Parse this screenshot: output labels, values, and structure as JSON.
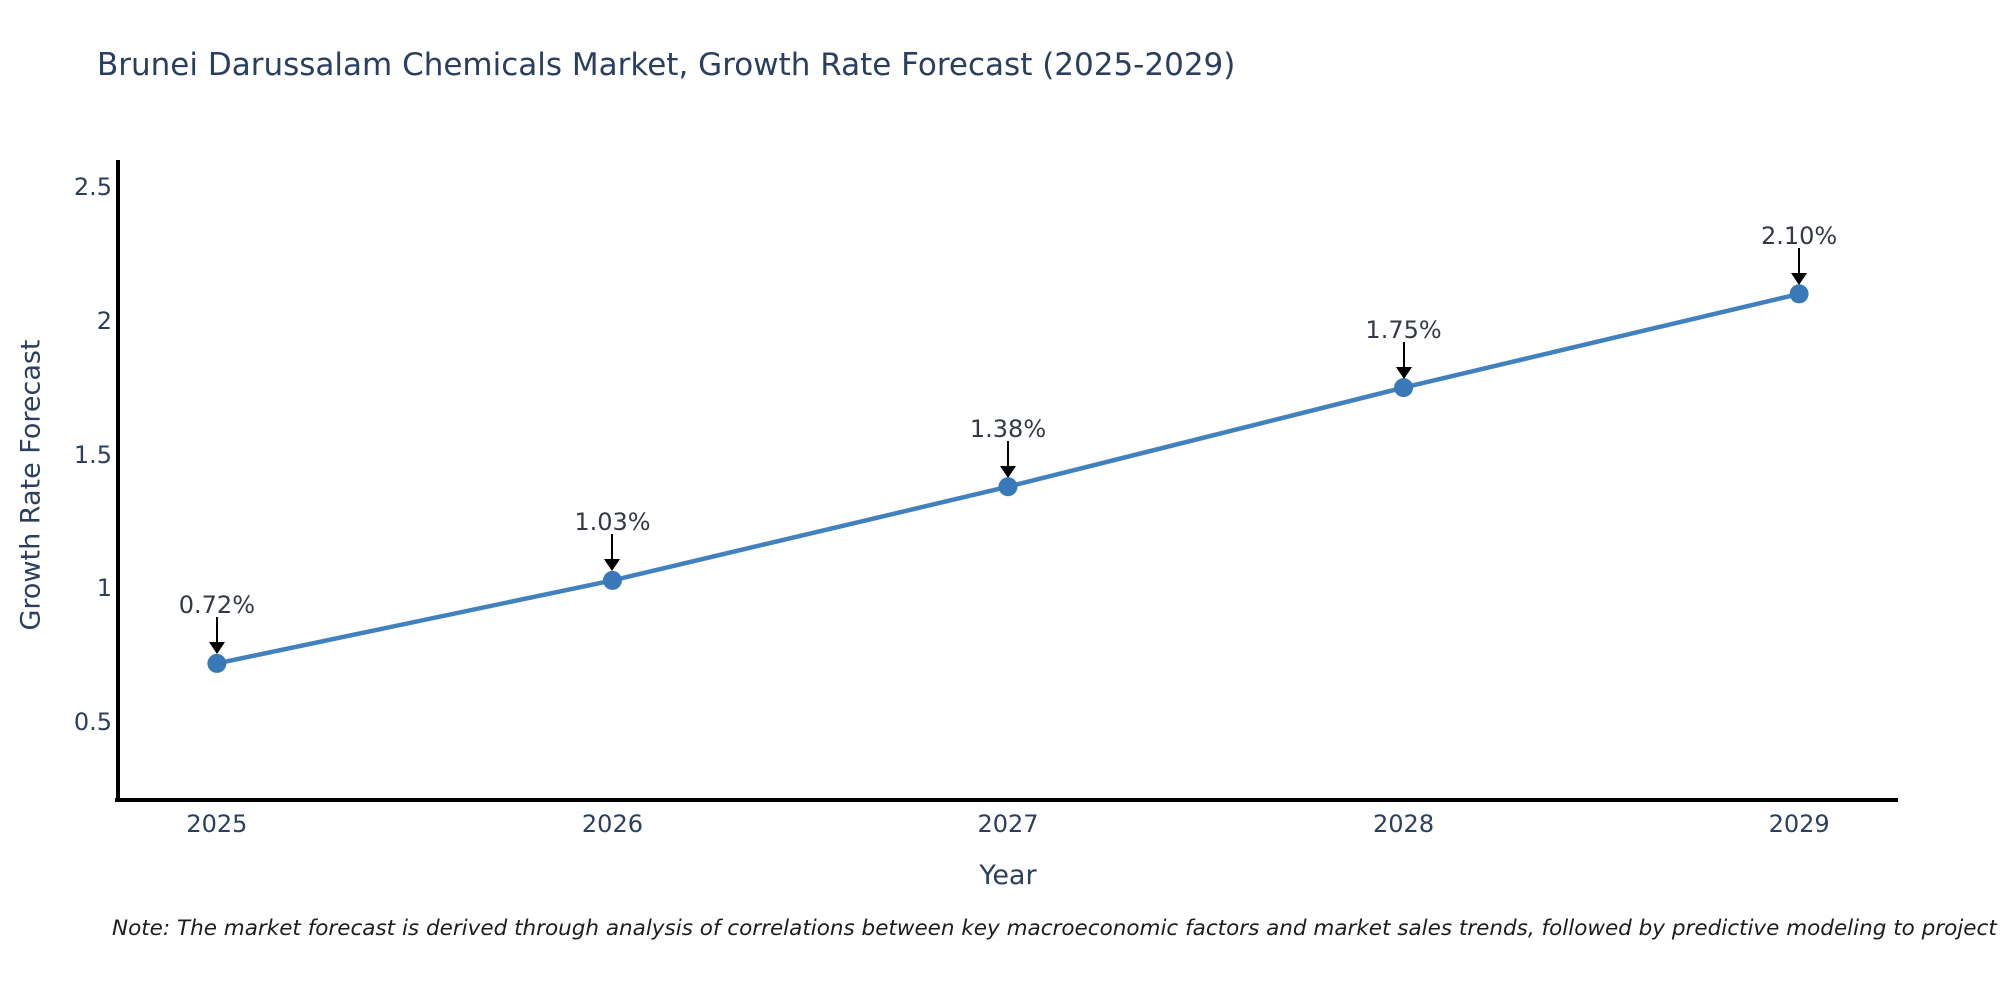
{
  "title": "Brunei Darussalam Chemicals Market, Growth Rate Forecast (2025-2029)",
  "note": "Note: The market forecast is derived through analysis of correlations between key macroeconomic factors and market sales trends, followed by predictive modeling to project future sales.",
  "chart_data": {
    "type": "line",
    "title": "Brunei Darussalam Chemicals Market, Growth Rate Forecast (2025-2029)",
    "xlabel": "Year",
    "ylabel": "Growth Rate Forecast",
    "x": [
      2025,
      2026,
      2027,
      2028,
      2029
    ],
    "x_tick_labels": [
      "2025",
      "2026",
      "2027",
      "2028",
      "2029"
    ],
    "series": [
      {
        "name": "Growth Rate Forecast",
        "values": [
          0.72,
          1.03,
          1.38,
          1.75,
          2.1
        ],
        "point_labels": [
          "0.72%",
          "1.03%",
          "1.38%",
          "1.75%",
          "2.10%"
        ]
      }
    ],
    "y_ticks": [
      0.5,
      1,
      1.5,
      2,
      2.5
    ],
    "y_tick_labels": [
      "0.5",
      "1",
      "1.5",
      "2",
      "2.5"
    ],
    "xlim": [
      2024.75,
      2029.25
    ],
    "ylim": [
      0.21,
      2.6
    ],
    "grid": false,
    "legend": false,
    "colors": {
      "line": "#4181bd",
      "marker": "#3a79b8",
      "axis": "#000000",
      "text": "#2a3f5f",
      "annotation_text": "#333a45",
      "arrow": "#000000"
    }
  }
}
